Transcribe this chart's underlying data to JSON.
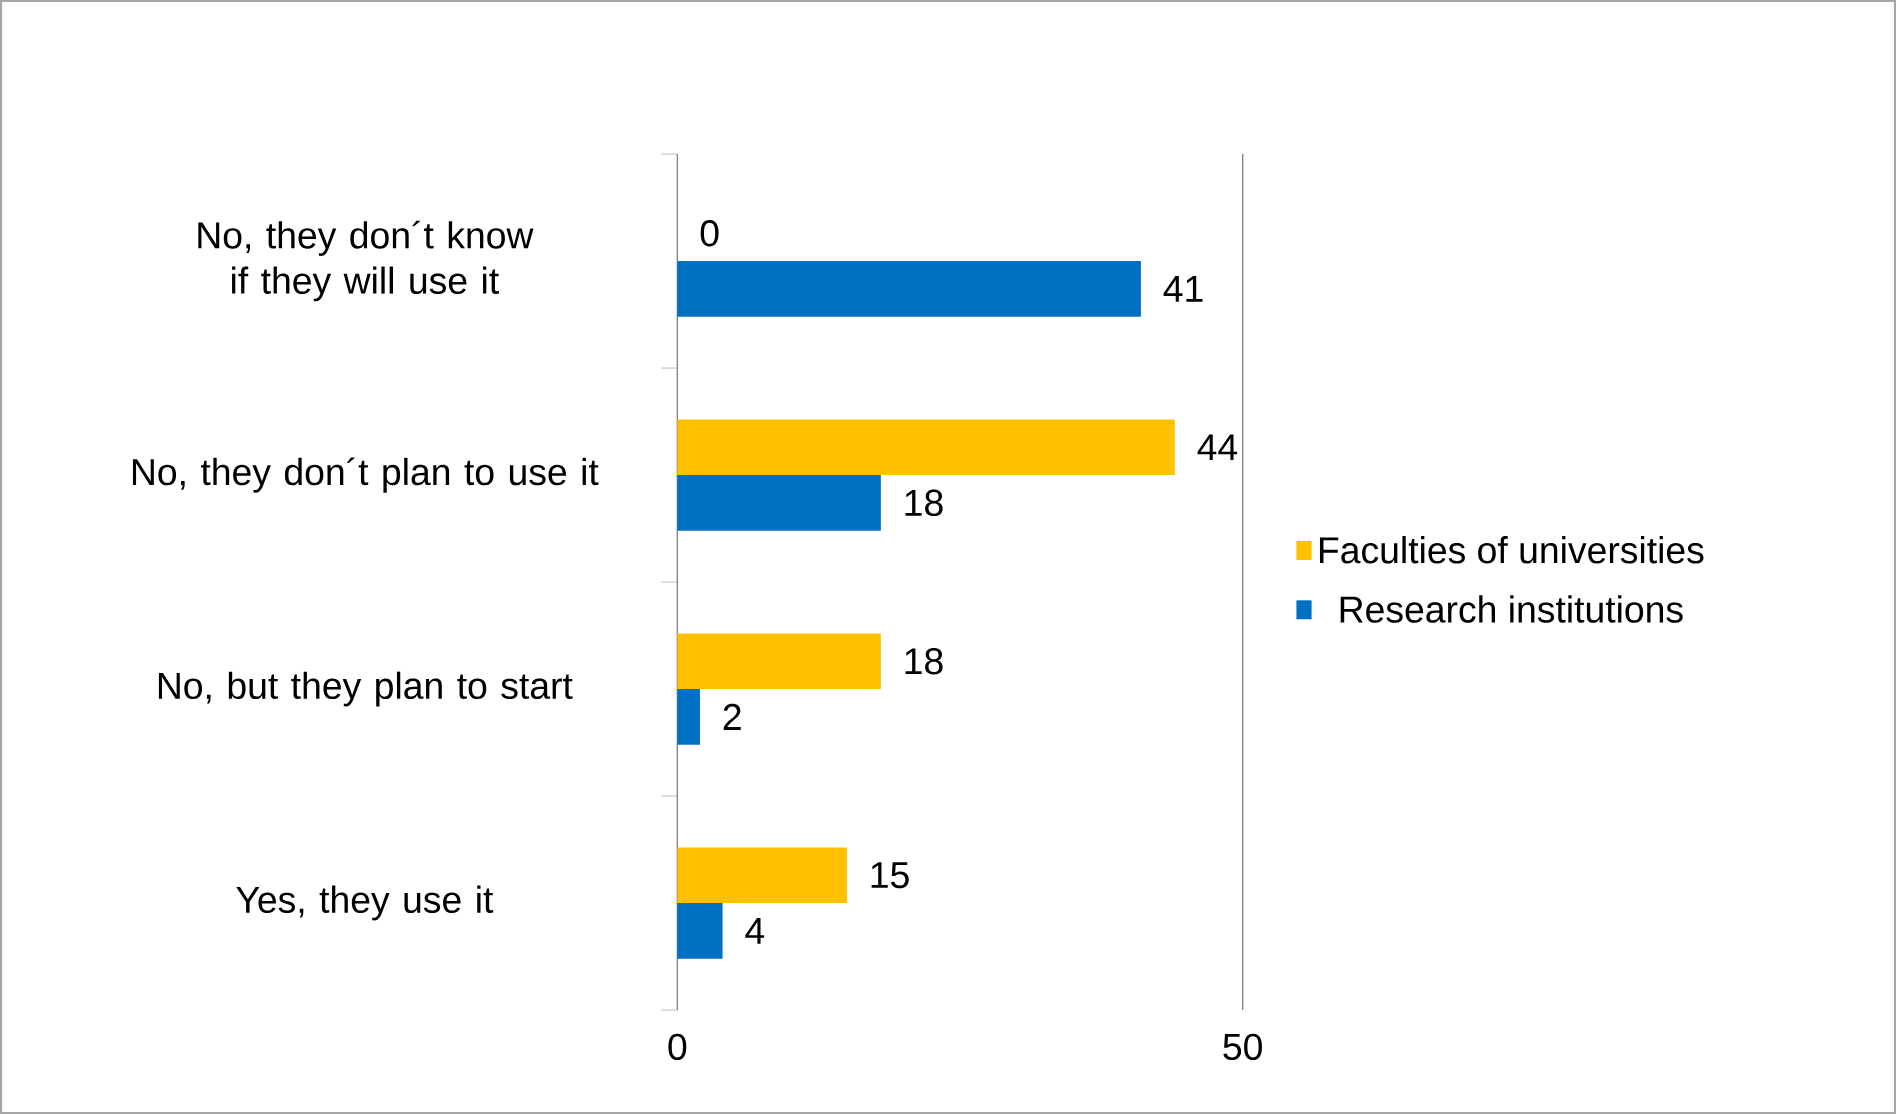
{
  "chart_data": {
    "type": "bar",
    "orientation": "horizontal",
    "categories": [
      "No, they don´t know if they will use it",
      "No, they don´t plan to use it",
      "No, but they plan to start",
      "Yes, they use it"
    ],
    "series": [
      {
        "name": "Faculties of universities",
        "color": "#ffc000",
        "values": [
          0,
          44,
          18,
          15
        ]
      },
      {
        "name": "Research institutions",
        "color": "#0070c0",
        "values": [
          41,
          18,
          2,
          4
        ]
      }
    ],
    "xlim": [
      0,
      50
    ],
    "xticks": [
      0,
      50
    ],
    "grid": "x",
    "legend": "right",
    "data_labels": true
  }
}
